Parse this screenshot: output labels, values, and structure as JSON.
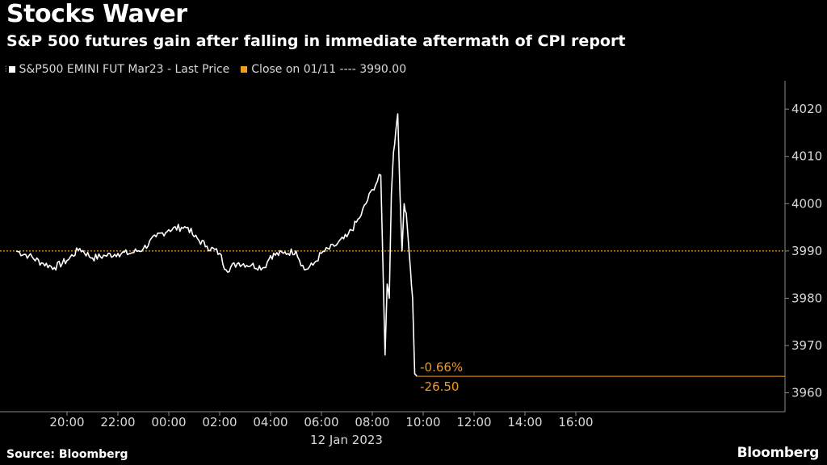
{
  "header": {
    "title": "Stocks Waver",
    "subtitle": "S&P 500 futures gain after falling in immediate aftermath of CPI report"
  },
  "legend": {
    "items": [
      {
        "label": "S&P500 EMINI FUT Mar23 - Last Price",
        "color": "#ffffff"
      },
      {
        "label": "Close on 01/11 ---- 3990.00",
        "color": "#f39a1e"
      }
    ]
  },
  "footer": {
    "source": "Source: Bloomberg",
    "brand": "Bloomberg"
  },
  "chart_data": {
    "type": "line",
    "x_unit": "time of day (hours since 18:00, 11 Jan 2023)",
    "xticks": [
      {
        "label": "20:00"
      },
      {
        "label": "22:00"
      },
      {
        "label": "00:00"
      },
      {
        "label": "02:00"
      },
      {
        "label": "04:00"
      },
      {
        "label": "06:00"
      },
      {
        "label": "08:00"
      },
      {
        "label": "10:00"
      },
      {
        "label": "12:00"
      },
      {
        "label": "14:00"
      },
      {
        "label": "16:00"
      }
    ],
    "date_label": "12 Jan 2023",
    "yticks": [
      3960,
      3970,
      3980,
      3990,
      4000,
      4010,
      4020
    ],
    "ylim": [
      3956,
      4026
    ],
    "grid": false,
    "legend_position": "top-left",
    "series": [
      {
        "name": "S&P500 EMINI FUT Mar23 - Last Price",
        "color": "#ffffff",
        "x": [
          "18:00",
          "18:30",
          "19:00",
          "19:30",
          "20:00",
          "20:30",
          "21:00",
          "21:30",
          "22:00",
          "22:30",
          "23:00",
          "23:30",
          "00:00",
          "00:30",
          "00:45",
          "01:00",
          "01:30",
          "02:00",
          "02:15",
          "02:45",
          "03:15",
          "03:45",
          "04:00",
          "04:30",
          "05:00",
          "05:20",
          "05:40",
          "06:00",
          "06:30",
          "07:00",
          "07:30",
          "08:00",
          "08:20",
          "08:30",
          "08:35",
          "08:40",
          "08:45",
          "08:50",
          "08:55",
          "09:00",
          "09:05",
          "09:10",
          "09:15",
          "09:20",
          "09:30",
          "09:35",
          "09:40",
          "09:45"
        ],
        "y": [
          3990,
          3989,
          3987.5,
          3986.5,
          3988,
          3990.5,
          3988.5,
          3989,
          3989.5,
          3989.5,
          3990.5,
          3993,
          3994.5,
          3995,
          3995,
          3993,
          3991,
          3989.5,
          3986,
          3987.5,
          3987,
          3986.5,
          3989,
          3989.5,
          3990,
          3986,
          3987,
          3989.5,
          3991,
          3993,
          3997,
          4003,
          4006,
          3968,
          3983,
          3980,
          4002,
          4011,
          4015,
          4019,
          4003,
          3990,
          4000,
          3998,
          3986,
          3980,
          3964,
          3963.5
        ]
      },
      {
        "name": "Close on 01/11",
        "color": "#f39a1e",
        "value": 3990.0
      }
    ],
    "annotations": [
      {
        "text": "-0.66%",
        "color": "#f39a1e"
      },
      {
        "text": "-26.50",
        "color": "#f39a1e"
      }
    ],
    "last_value": 3963.5
  }
}
